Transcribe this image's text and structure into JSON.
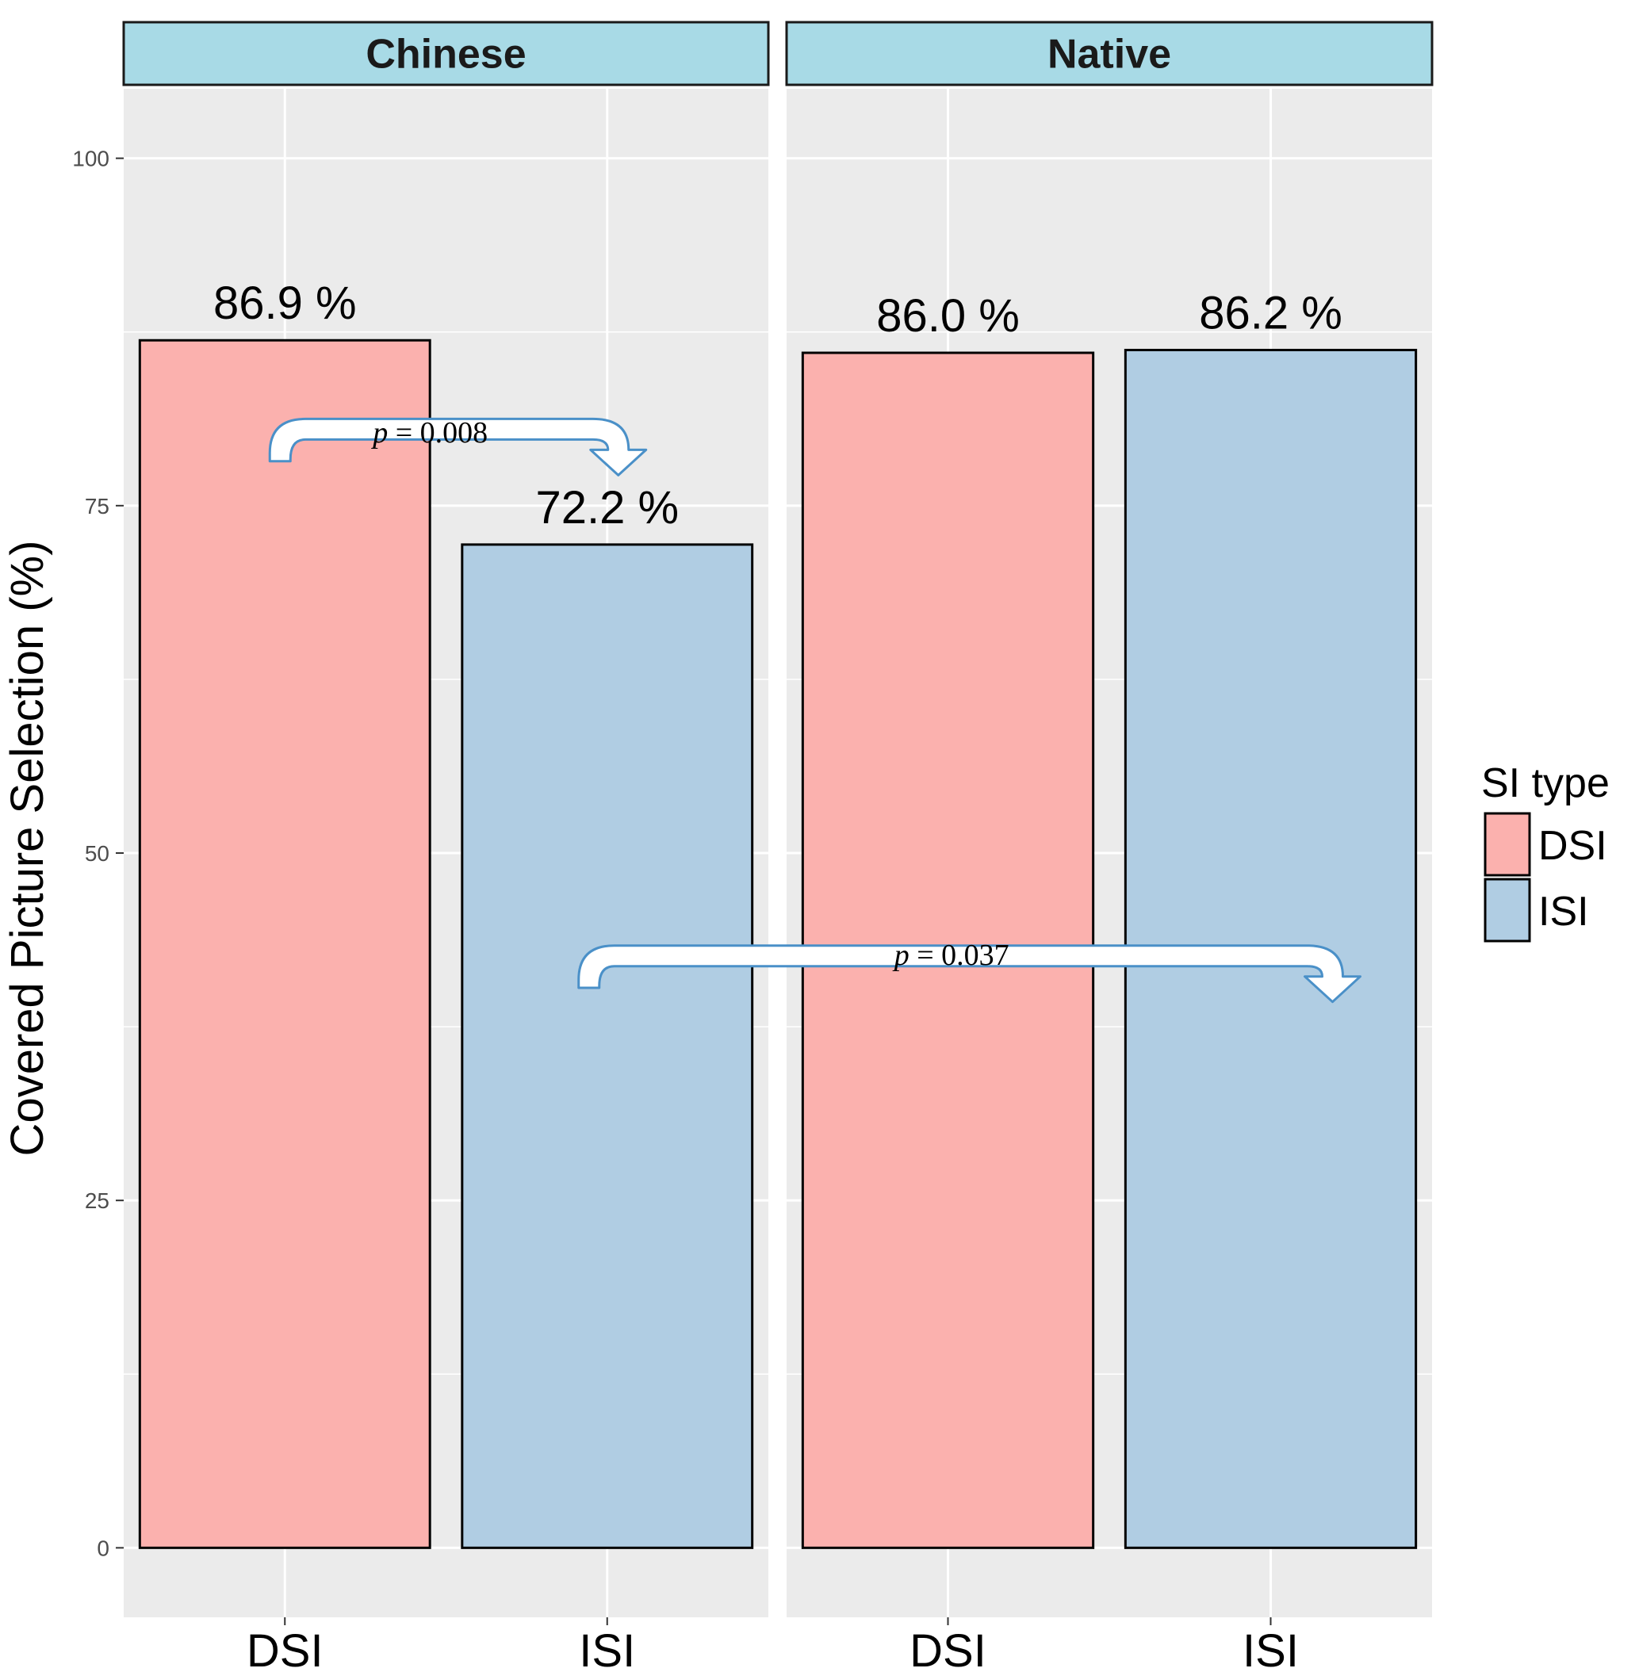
{
  "chart_data": {
    "type": "bar",
    "ylabel": "Covered Picture Selection (%)",
    "ylim": [
      -5,
      105
    ],
    "yticks": [
      0,
      25,
      50,
      75,
      100
    ],
    "grid": true,
    "legend_title": "SI type",
    "legend_position": "right",
    "series_colors": {
      "DSI": "#fbb1ae",
      "ISI": "#b0cde3"
    },
    "panels": [
      {
        "label": "Chinese",
        "categories": [
          "DSI",
          "ISI"
        ],
        "values": [
          86.9,
          72.2
        ],
        "value_labels": [
          "86.9 %",
          "72.2 %"
        ]
      },
      {
        "label": "Native",
        "categories": [
          "DSI",
          "ISI"
        ],
        "values": [
          86.0,
          86.2
        ],
        "value_labels": [
          "86.0 %",
          "86.2 %"
        ]
      }
    ],
    "legend": [
      {
        "label": "DSI",
        "color": "#fbb1ae"
      },
      {
        "label": "ISI",
        "color": "#b0cde3"
      }
    ],
    "annotations": [
      {
        "p_symbol": "p",
        "text": "= 0.008",
        "from": "Chinese DSI",
        "to": "Chinese ISI"
      },
      {
        "p_symbol": "p",
        "text": "= 0.037",
        "from": "Chinese ISI",
        "to": "Native ISI"
      }
    ],
    "colors": {
      "panel_bg": "#ebebeb",
      "grid": "#ffffff",
      "strip_bg": "#a8dae6",
      "arrow": "#4a90c8"
    }
  }
}
